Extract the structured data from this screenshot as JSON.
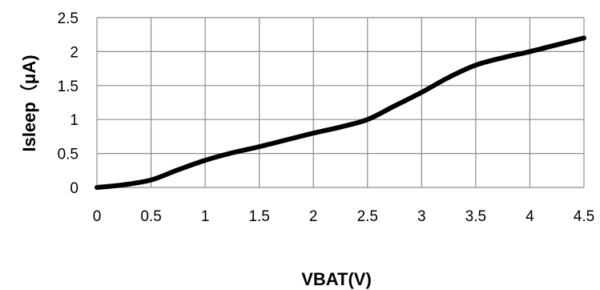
{
  "chart_data": {
    "type": "line",
    "title": "",
    "xlabel": "VBAT(V)",
    "ylabel": "Isleep（μA)",
    "xlim": [
      0,
      4.5
    ],
    "ylim": [
      0,
      2.5
    ],
    "x_ticks": [
      "0",
      "0.5",
      "1",
      "1.5",
      "2",
      "2.5",
      "3",
      "3.5",
      "4",
      "4.5"
    ],
    "y_ticks": [
      "0",
      "0.5",
      "1",
      "1.5",
      "2",
      "2.5"
    ],
    "grid": true,
    "legend": "none",
    "series": [
      {
        "x": [
          0,
          0.25,
          0.5,
          0.75,
          1,
          1.25,
          1.5,
          1.75,
          2,
          2.25,
          2.5,
          2.75,
          3,
          3.25,
          3.5,
          3.75,
          4,
          4.25,
          4.5
        ],
        "y": [
          0,
          0.04,
          0.11,
          0.26,
          0.4,
          0.51,
          0.6,
          0.7,
          0.8,
          0.89,
          1.0,
          1.2,
          1.4,
          1.62,
          1.8,
          1.91,
          2.0,
          2.1,
          2.2
        ],
        "color": "#000000"
      }
    ]
  }
}
